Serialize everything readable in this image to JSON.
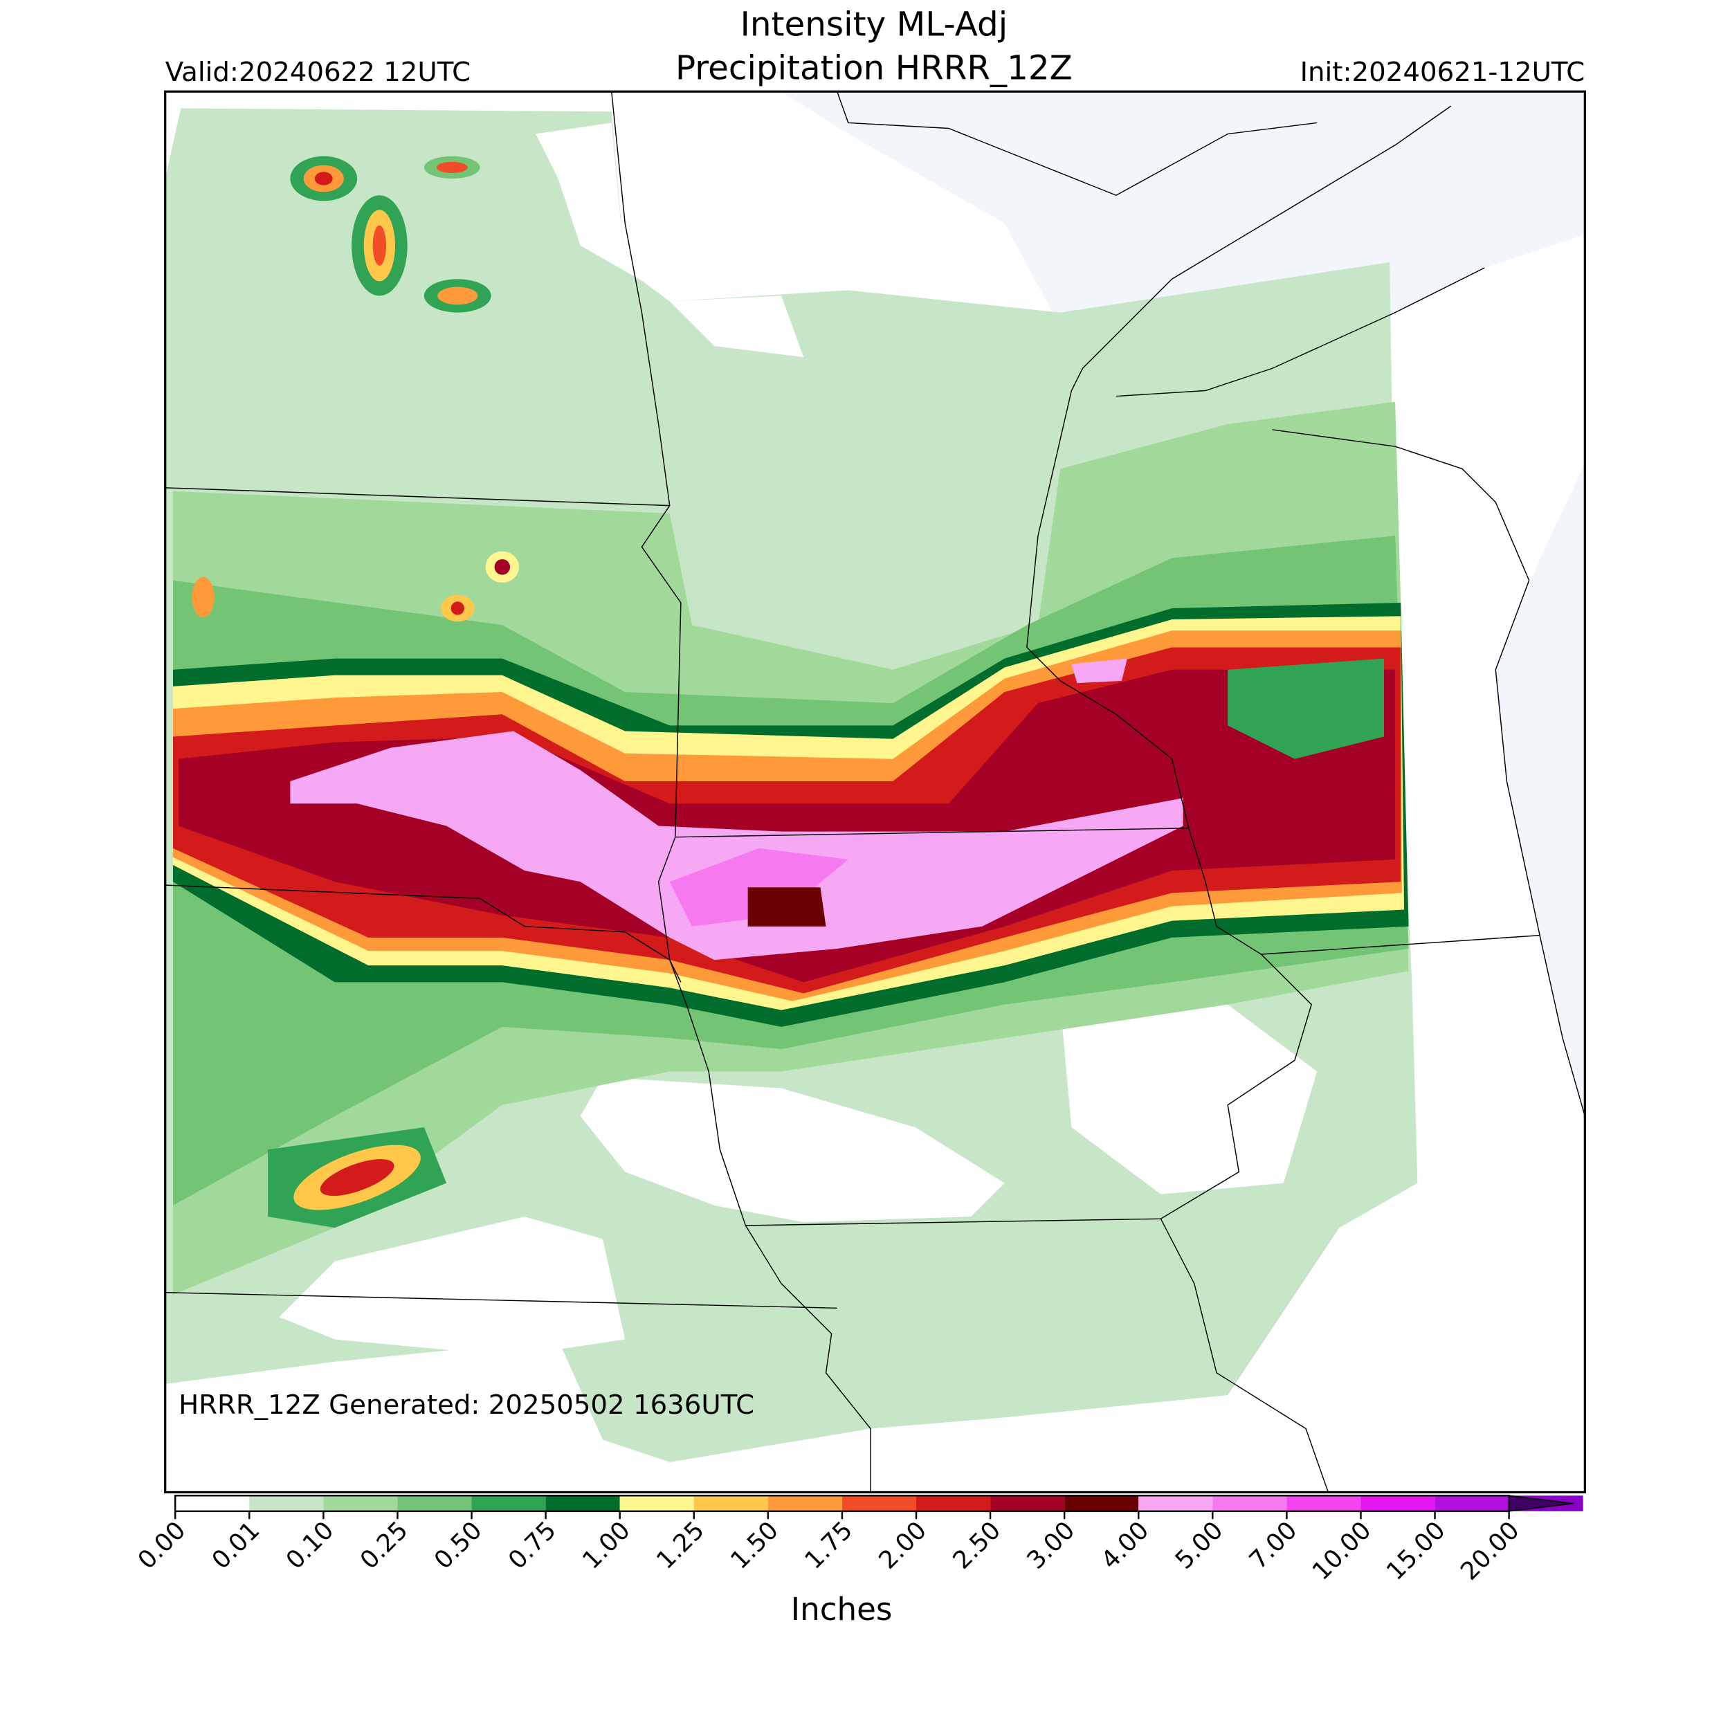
{
  "header": {
    "title_line1": "Intensity ML-Adj",
    "title_line2": "Precipitation HRRR_12Z",
    "valid": "Valid:20240622 12UTC",
    "init": "Init:20240621-12UTC"
  },
  "map": {
    "footer": "HRRR_12Z Generated: 20250502 1636UTC"
  },
  "colorbar": {
    "label": "Inches",
    "ticks": [
      {
        "value": 0,
        "label": "0.00"
      },
      {
        "value": 0.01,
        "label": "0.01"
      },
      {
        "value": 0.1,
        "label": "0.10"
      },
      {
        "value": 0.25,
        "label": "0.25"
      },
      {
        "value": 0.5,
        "label": "0.50"
      },
      {
        "value": 0.75,
        "label": "0.75"
      },
      {
        "value": 1,
        "label": "1.00"
      },
      {
        "value": 1.25,
        "label": "1.25"
      },
      {
        "value": 1.5,
        "label": "1.50"
      },
      {
        "value": 1.75,
        "label": "1.75"
      },
      {
        "value": 2,
        "label": "2.00"
      },
      {
        "value": 2.5,
        "label": "2.50"
      },
      {
        "value": 3,
        "label": "3.00"
      },
      {
        "value": 4,
        "label": "4.00"
      },
      {
        "value": 5,
        "label": "5.00"
      },
      {
        "value": 7,
        "label": "7.00"
      },
      {
        "value": 10,
        "label": "10.00"
      },
      {
        "value": 15,
        "label": "15.00"
      },
      {
        "value": 20,
        "label": "20.00"
      }
    ],
    "colors": [
      "#ffffff",
      "#c7e6c7",
      "#a1d99b",
      "#74c476",
      "#31a354",
      "#006d2c",
      "#fff68f",
      "#ffc84a",
      "#fe9a3a",
      "#f24d28",
      "#d31b1b",
      "#a50026",
      "#6b0000",
      "#f7a8f4",
      "#f57af0",
      "#f344f0",
      "#e316f2",
      "#b010e0",
      "#8a00c8"
    ],
    "extend_color": "#3f0064"
  }
}
